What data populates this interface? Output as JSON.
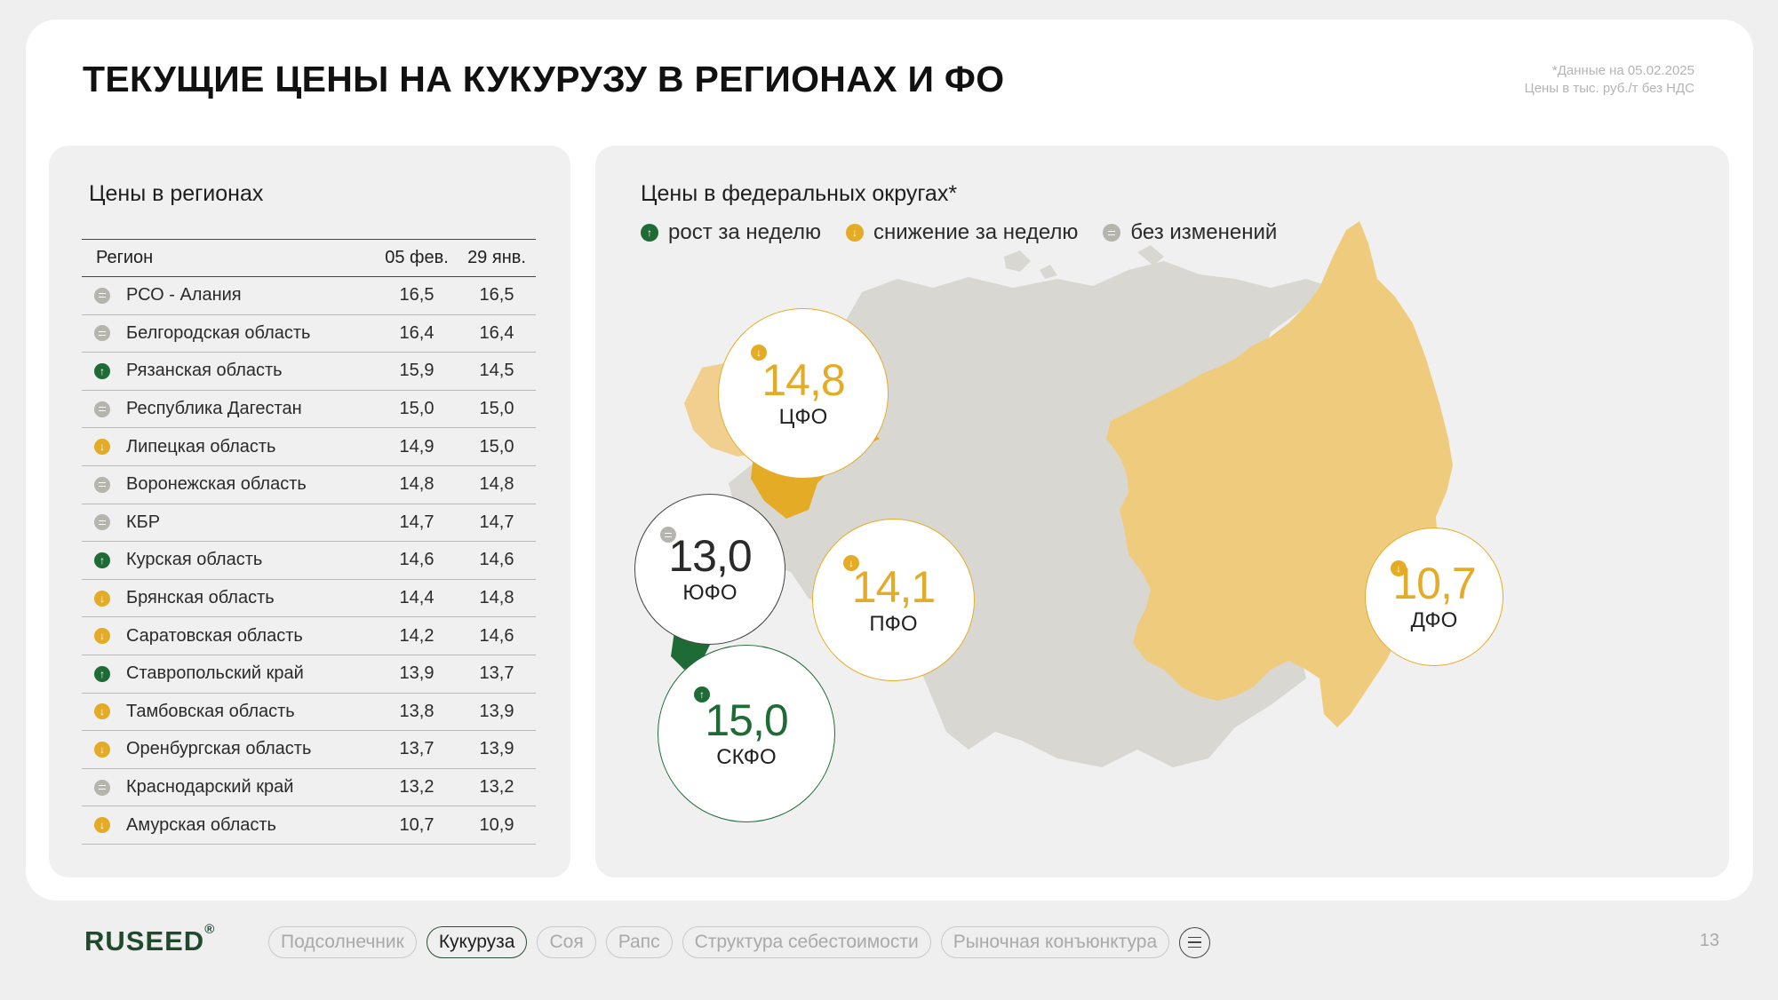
{
  "title": "ТЕКУЩИЕ ЦЕНЫ НА КУКУРУЗУ В РЕГИОНАХ И ФО",
  "note": {
    "line1": "*Данные на 05.02.2025",
    "line2": "Цены в тыс. руб./т без НДС"
  },
  "regions_panel": {
    "title": "Цены в регионах",
    "headers": {
      "region": "Регион",
      "col1": "05 фев.",
      "col2": "29 янв."
    },
    "rows": [
      {
        "name": "РСО - Алания",
        "v1": "16,5",
        "v2": "16,5",
        "trend": "same"
      },
      {
        "name": "Белгородская область",
        "v1": "16,4",
        "v2": "16,4",
        "trend": "same"
      },
      {
        "name": "Рязанская область",
        "v1": "15,9",
        "v2": "14,5",
        "trend": "up"
      },
      {
        "name": "Республика Дагестан",
        "v1": "15,0",
        "v2": "15,0",
        "trend": "same"
      },
      {
        "name": "Липецкая область",
        "v1": "14,9",
        "v2": "15,0",
        "trend": "down"
      },
      {
        "name": "Воронежская область",
        "v1": "14,8",
        "v2": "14,8",
        "trend": "same"
      },
      {
        "name": "КБР",
        "v1": "14,7",
        "v2": "14,7",
        "trend": "same"
      },
      {
        "name": "Курская область",
        "v1": "14,6",
        "v2": "14,6",
        "trend": "up"
      },
      {
        "name": "Брянская область",
        "v1": "14,4",
        "v2": "14,8",
        "trend": "down"
      },
      {
        "name": "Саратовская область",
        "v1": "14,2",
        "v2": "14,6",
        "trend": "down"
      },
      {
        "name": "Ставропольский край",
        "v1": "13,9",
        "v2": "13,7",
        "trend": "up"
      },
      {
        "name": "Тамбовская область",
        "v1": "13,8",
        "v2": "13,9",
        "trend": "down"
      },
      {
        "name": "Оренбургская область",
        "v1": "13,7",
        "v2": "13,9",
        "trend": "down"
      },
      {
        "name": "Краснодарский край",
        "v1": "13,2",
        "v2": "13,2",
        "trend": "same"
      },
      {
        "name": "Амурская область",
        "v1": "10,7",
        "v2": "10,9",
        "trend": "down"
      }
    ]
  },
  "districts_panel": {
    "title": "Цены в федеральных округах*",
    "legend": [
      {
        "label": "рост за неделю",
        "trend": "up"
      },
      {
        "label": "снижение за неделю",
        "trend": "down"
      },
      {
        "label": "без изменений",
        "trend": "same"
      }
    ],
    "districts": {
      "cfo": {
        "value": "14,8",
        "label": "ЦФО",
        "trend": "down"
      },
      "yufo": {
        "value": "13,0",
        "label": "ЮФО",
        "trend": "same"
      },
      "pfo": {
        "value": "14,1",
        "label": "ПФО",
        "trend": "down"
      },
      "skfo": {
        "value": "15,0",
        "label": "СКФО",
        "trend": "up"
      },
      "dfo": {
        "value": "10,7",
        "label": "ДФО",
        "trend": "down"
      }
    }
  },
  "footer": {
    "logo": "RUSEED",
    "logo_mark": "®",
    "nav": [
      "Подсолнечник",
      "Кукуруза",
      "Соя",
      "Рапс",
      "Структура себестоимости",
      "Рыночная конъюнктура"
    ],
    "active_nav": "Кукуруза",
    "page_number": "13"
  },
  "colors": {
    "up": "#1f6b36",
    "down": "#e4ac26",
    "same": "#b5b4ad",
    "map_gray": "#d9d7d2",
    "map_dfo": "#efcb7e",
    "map_cfo": "#f1cf8f",
    "map_pfo": "#e4ac26"
  }
}
